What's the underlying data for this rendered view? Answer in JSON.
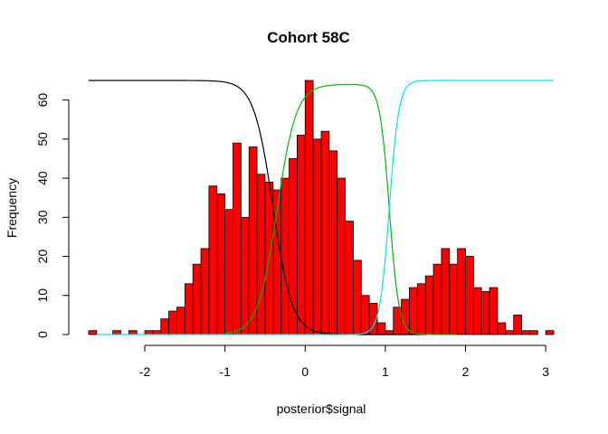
{
  "chart_data": {
    "type": "bar",
    "title": "Cohort 58C",
    "xlabel": "posterior$signal",
    "ylabel": "Frequency",
    "xlim": [
      -2.7,
      3.1
    ],
    "ylim": [
      0,
      65
    ],
    "xticks": [
      -2,
      -1,
      0,
      1,
      2,
      3
    ],
    "yticks": [
      0,
      10,
      20,
      30,
      40,
      50,
      60
    ],
    "grid": false,
    "bar_color": "#ff0000",
    "bin_width": 0.1,
    "bin_starts": [
      -2.7,
      -2.6,
      -2.5,
      -2.4,
      -2.3,
      -2.2,
      -2.1,
      -2.0,
      -1.9,
      -1.8,
      -1.7,
      -1.6,
      -1.5,
      -1.4,
      -1.3,
      -1.2,
      -1.1,
      -1.0,
      -0.9,
      -0.8,
      -0.7,
      -0.6,
      -0.5,
      -0.4,
      -0.3,
      -0.2,
      -0.1,
      0.0,
      0.1,
      0.2,
      0.3,
      0.4,
      0.5,
      0.6,
      0.7,
      0.8,
      0.9,
      1.0,
      1.1,
      1.2,
      1.3,
      1.4,
      1.5,
      1.6,
      1.7,
      1.8,
      1.9,
      2.0,
      2.1,
      2.2,
      2.3,
      2.4,
      2.5,
      2.6,
      2.7,
      2.8,
      2.9,
      3.0
    ],
    "counts": [
      1,
      0,
      0,
      1,
      0,
      1,
      0,
      1,
      1,
      4,
      6,
      7,
      13,
      18,
      22,
      38,
      36,
      32,
      49,
      30,
      48,
      41,
      39,
      37,
      40,
      45,
      51,
      65,
      50,
      52,
      47,
      40,
      29,
      19,
      10,
      8,
      3,
      1,
      7,
      9,
      12,
      13,
      15,
      18,
      22,
      18,
      22,
      20,
      12,
      11,
      12,
      3,
      1,
      5,
      1,
      1,
      0,
      1
    ],
    "curves": [
      {
        "color": "#000000",
        "shape": "falling",
        "x_start": -2.7,
        "x_end": 1.5,
        "high": 65,
        "mid": -0.4,
        "scale": 0.12
      },
      {
        "color": "#00bb00",
        "shape": "band",
        "x_start": -1.0,
        "x_end": 1.9,
        "high": 64,
        "rise_mid": -0.35,
        "rise_scale": 0.12,
        "fall_mid": 1.05,
        "fall_scale": 0.06
      },
      {
        "color": "#00e5e5",
        "shape": "rising",
        "x_start": -2.6,
        "x_end": 3.1,
        "high": 65,
        "mid": 1.05,
        "scale": 0.06
      }
    ]
  }
}
